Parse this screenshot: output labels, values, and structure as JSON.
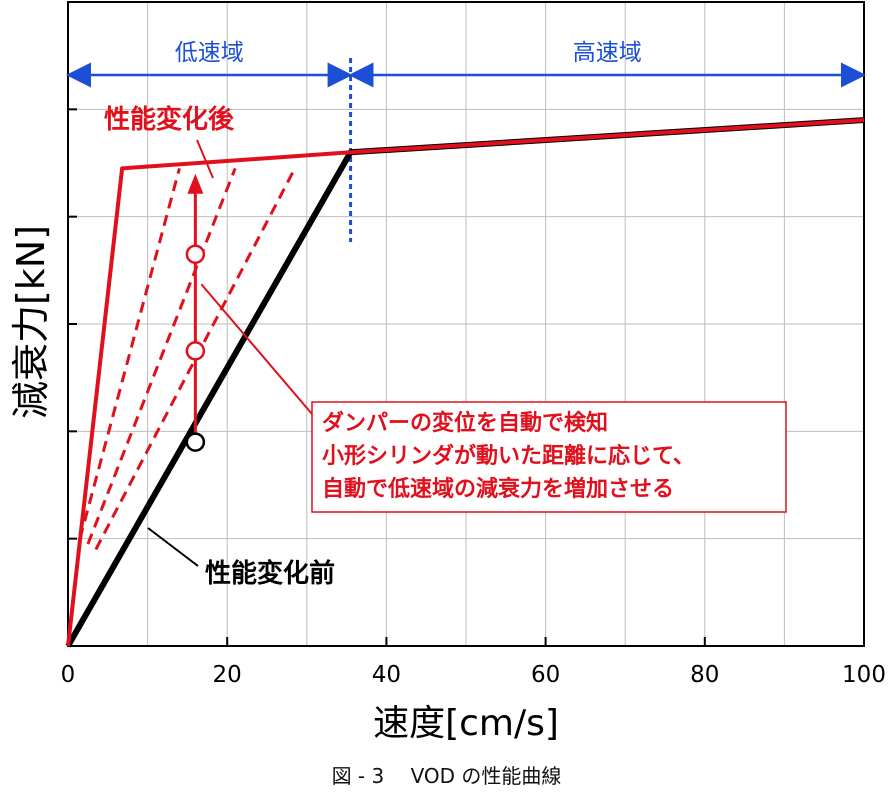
{
  "chart_data": {
    "type": "line",
    "xlabel": "速度[cm/s]",
    "ylabel": "減衰力[kN]",
    "xlim": [
      0,
      100
    ],
    "ylim": [
      0,
      6
    ],
    "xticks": [
      0,
      20,
      40,
      60,
      80,
      100
    ],
    "y_tick_labels_shown": false,
    "grid": true,
    "series": [
      {
        "name": "性能変化後",
        "color": "#e0101c",
        "style": "solid",
        "x": [
          0,
          6.8,
          35.5,
          100
        ],
        "y": [
          0,
          4.45,
          4.6,
          4.9
        ]
      },
      {
        "name": "性能変化前",
        "color": "#000000",
        "style": "solid",
        "x": [
          0,
          35.5,
          100
        ],
        "y": [
          0,
          4.6,
          4.9
        ]
      }
    ],
    "intermediate_lines": [
      {
        "x": [
          1.5,
          14
        ],
        "y": [
          1.0,
          4.45
        ]
      },
      {
        "x": [
          2.5,
          21
        ],
        "y": [
          0.95,
          4.45
        ]
      },
      {
        "x": [
          3.5,
          28.5
        ],
        "y": [
          0.9,
          4.45
        ]
      }
    ],
    "arrow": {
      "x": 16,
      "y": [
        1.9,
        4.4
      ]
    },
    "markers": [
      {
        "x": 16,
        "y": 1.9
      },
      {
        "x": 16,
        "y": 2.75
      },
      {
        "x": 16,
        "y": 3.65
      }
    ],
    "boundary_x": 35.5,
    "regions": [
      {
        "label": "低速域",
        "x": [
          0,
          35.5
        ]
      },
      {
        "label": "高速域",
        "x": [
          35.5,
          100
        ]
      }
    ],
    "annotation_lines": [
      "ダンパーの変位を自動で検知",
      "小形シリンダが動いた距離に応じて、",
      "自動で低速域の減衰力を増加させる"
    ]
  },
  "caption": "図 - 3　 VOD の性能曲線",
  "colors": {
    "red": "#e0101c",
    "blue": "#1a4fd6",
    "black": "#000000",
    "grid": "#bdbdbd"
  }
}
